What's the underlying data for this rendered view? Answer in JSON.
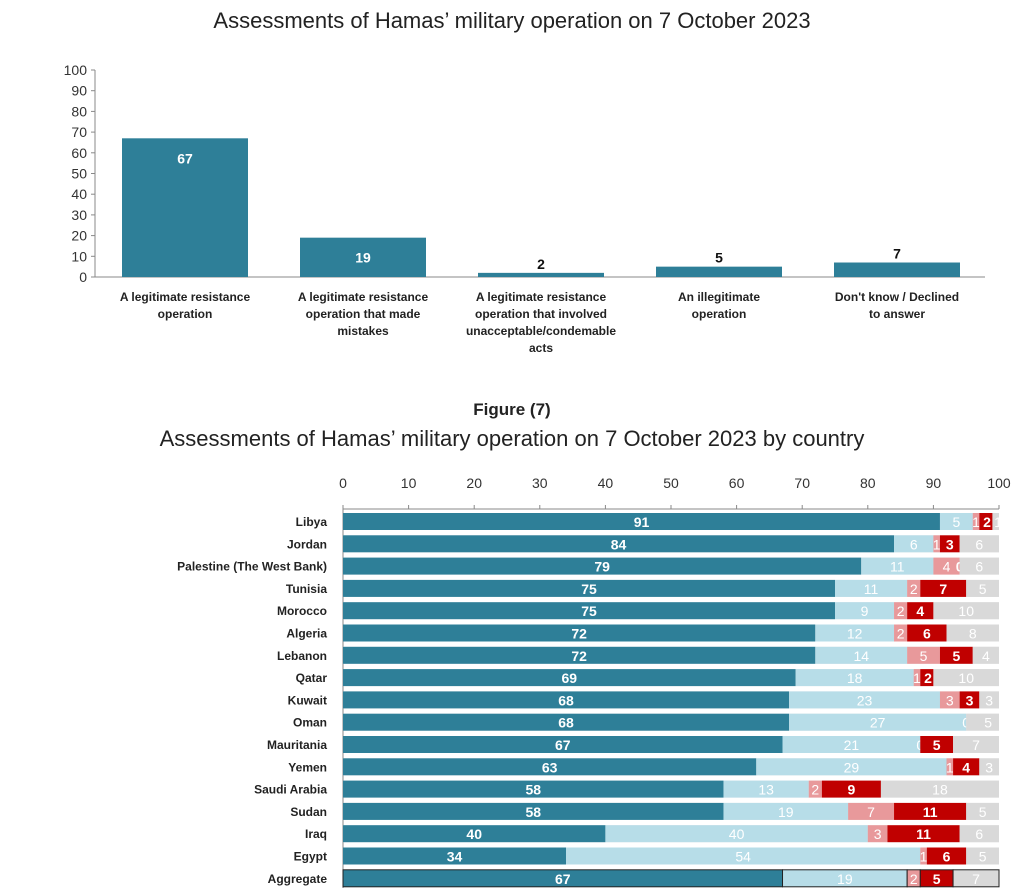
{
  "chart_data": [
    {
      "type": "bar",
      "title": "Assessments of Hamas’ military operation on 7 October 2023",
      "categories": [
        "A legitimate resistance operation",
        "A legitimate resistance operation that made mistakes",
        "A legitimate resistance operation that involved unacceptable/condemable acts",
        "An illegitimate operation",
        "Don't know / Declined to answer"
      ],
      "values": [
        67,
        19,
        2,
        5,
        7
      ],
      "ylim": [
        0,
        100
      ],
      "yticks": [
        0,
        10,
        20,
        30,
        40,
        50,
        60,
        70,
        80,
        90,
        100
      ],
      "color": "#2e7f98",
      "grid": false
    },
    {
      "type": "bar",
      "orientation": "horizontal-stacked",
      "figure_label": "Figure (7)",
      "title": "Assessments of Hamas’ military operation on 7 October 2023 by country",
      "xlim": [
        0,
        100
      ],
      "xticks": [
        0,
        10,
        20,
        30,
        40,
        50,
        60,
        70,
        80,
        90,
        100
      ],
      "colors": [
        "#2e7f98",
        "#b7dde8",
        "#e8999b",
        "#c00000",
        "#d9d9d9"
      ],
      "categories": [
        "Libya",
        "Jordan",
        "Palestine (The West Bank)",
        "Tunisia",
        "Morocco",
        "Algeria",
        "Lebanon",
        "Qatar",
        "Kuwait",
        "Oman",
        "Mauritania",
        "Yemen",
        "Saudi Arabia",
        "Sudan",
        "Iraq",
        "Egypt",
        "Aggregate"
      ],
      "series": [
        {
          "values": [
            91,
            84,
            79,
            75,
            75,
            72,
            72,
            69,
            68,
            68,
            67,
            63,
            58,
            58,
            40,
            34,
            67
          ]
        },
        {
          "values": [
            5,
            6,
            11,
            11,
            9,
            12,
            14,
            18,
            23,
            27,
            21,
            29,
            13,
            19,
            40,
            54,
            19
          ]
        },
        {
          "values": [
            1,
            1,
            4,
            2,
            2,
            2,
            5,
            1,
            3,
            0,
            0,
            1,
            2,
            7,
            3,
            1,
            2
          ]
        },
        {
          "values": [
            2,
            3,
            0,
            7,
            4,
            6,
            5,
            2,
            3,
            0,
            5,
            4,
            9,
            11,
            11,
            6,
            5
          ]
        },
        {
          "values": [
            1,
            6,
            6,
            5,
            10,
            8,
            4,
            10,
            3,
            5,
            7,
            3,
            18,
            5,
            6,
            5,
            7
          ]
        }
      ]
    }
  ]
}
